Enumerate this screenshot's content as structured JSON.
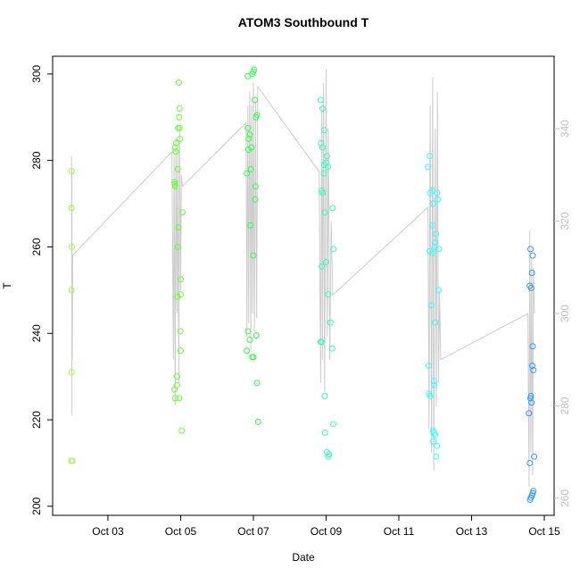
{
  "chart_data": {
    "type": "scatter",
    "title": "ATOM3 Southbound T",
    "x_label": "Date",
    "y_label": "T",
    "xlim": [
      1.48,
      15.27
    ],
    "xticks": [
      {
        "value": 3,
        "label": "Oct 03"
      },
      {
        "value": 5,
        "label": "Oct 05"
      },
      {
        "value": 7,
        "label": "Oct 07"
      },
      {
        "value": 9,
        "label": "Oct 09"
      },
      {
        "value": 11,
        "label": "Oct 11"
      },
      {
        "value": 13,
        "label": "Oct 13"
      },
      {
        "value": 15,
        "label": "Oct 15"
      }
    ],
    "ylim": [
      197.9,
      304.1
    ],
    "yticks": [
      200,
      220,
      240,
      260,
      280,
      300
    ],
    "y2lim": [
      256.3,
      355.7
    ],
    "y2ticks": [
      260,
      280,
      300,
      320,
      340
    ],
    "y2_color": "#c0c0c0",
    "series": [
      {
        "type": "scatter",
        "x": [
          2.0,
          2.0,
          2.01,
          2.0,
          2.0,
          2.0,
          2.02,
          4.95,
          4.97,
          4.96,
          4.93,
          4.97,
          4.98,
          4.88,
          4.85,
          4.86,
          4.87,
          4.92,
          4.83,
          4.84,
          4.85,
          5.05,
          4.94,
          4.92,
          5.0,
          5.0,
          4.91,
          4.99,
          5.0,
          4.9,
          4.83,
          4.9,
          4.85,
          4.96,
          5.03,
          7.02,
          7.0,
          6.97,
          6.85,
          7.04,
          7.1,
          7.07,
          6.85,
          6.9,
          6.87,
          6.95,
          6.86,
          6.93,
          6.82,
          7.06,
          7.05,
          6.92,
          7.0,
          6.85,
          7.08,
          6.9,
          6.82,
          6.97,
          7.0,
          7.1,
          7.13,
          8.85,
          8.9,
          8.95,
          8.86,
          8.9,
          9.02,
          9.0,
          8.95,
          9.05,
          8.94,
          8.88,
          8.9,
          9.18,
          8.96,
          9.2,
          9.0,
          8.88,
          9.05,
          9.12,
          8.85,
          8.88,
          9.17,
          8.96,
          9.2,
          8.97,
          9.02,
          9.08,
          9.06,
          11.85,
          11.8,
          11.92,
          11.86,
          12.05,
          12.07,
          11.95,
          11.93,
          12.02,
          12.0,
          11.98,
          12.1,
          11.85,
          11.92,
          12.09,
          11.9,
          12.0,
          11.82,
          11.97,
          11.98,
          11.83,
          11.86,
          11.94,
          11.97,
          12.0,
          11.95,
          12.05,
          12.03,
          14.62,
          14.68,
          14.66,
          14.6,
          14.64,
          14.68,
          14.67,
          14.7,
          14.63,
          14.62,
          14.65,
          14.58,
          14.72,
          14.6,
          14.7,
          14.68,
          14.66,
          14.63,
          14.61
        ],
        "values": [
          277.5,
          269,
          260,
          250,
          231,
          210.5,
          210.5,
          298,
          292,
          290,
          287.5,
          287.5,
          285,
          284,
          283,
          282,
          282,
          278,
          275,
          274.5,
          274,
          268,
          264.5,
          260,
          252.5,
          249,
          248.5,
          240.5,
          236,
          230,
          227,
          228,
          225,
          225,
          217.5,
          301,
          300.5,
          300,
          299.5,
          294,
          290.5,
          290,
          287.5,
          286,
          285,
          283,
          282.5,
          278,
          277,
          274,
          271,
          265,
          258,
          240.5,
          239.5,
          238.5,
          236,
          234.5,
          234.5,
          228.5,
          219.5,
          294,
          292,
          287,
          284,
          283,
          281,
          279.5,
          279,
          278.5,
          277,
          273,
          272.5,
          269,
          268,
          259.5,
          256.5,
          255.5,
          249,
          242.5,
          238,
          238,
          236.5,
          225.5,
          219,
          217,
          212.5,
          212,
          211.5,
          281,
          278.5,
          273,
          272.5,
          272.5,
          271,
          270,
          265,
          263,
          261,
          260,
          259.5,
          259,
          258.5,
          250,
          246.5,
          242.5,
          232.5,
          229,
          228,
          226,
          225.5,
          217.5,
          217,
          216.5,
          215,
          214,
          211.5,
          259.5,
          258,
          254,
          251,
          250.5,
          237,
          232.5,
          231.5,
          225.5,
          225,
          224,
          221.5,
          211.5,
          210,
          203.5,
          203,
          202.5,
          202,
          201.5
        ],
        "colors": [
          "#99ff33",
          "#99ff33",
          "#99ff33",
          "#99ff33",
          "#99ff33",
          "#99ff33",
          "#99ff33",
          "#66ff33",
          "#66ff33",
          "#66ff33",
          "#66ff33",
          "#66ff33",
          "#66ff33",
          "#66ff33",
          "#66ff33",
          "#66ff33",
          "#66ff33",
          "#66ff33",
          "#66ff33",
          "#66ff33",
          "#66ff33",
          "#66ff33",
          "#66ff33",
          "#66ff33",
          "#66ff33",
          "#66ff33",
          "#66ff33",
          "#66ff33",
          "#66ff33",
          "#66ff33",
          "#66ff33",
          "#66ff33",
          "#66ff33",
          "#66ff33",
          "#66ff33",
          "#33ff44",
          "#33ff44",
          "#33ff44",
          "#33ff44",
          "#33ff44",
          "#33ff44",
          "#33ff44",
          "#33ff44",
          "#33ff44",
          "#33ff44",
          "#33ff44",
          "#33ff44",
          "#33ff44",
          "#33ff44",
          "#33ff44",
          "#33ff44",
          "#33ff44",
          "#33ff44",
          "#33ff44",
          "#33ff44",
          "#33ff44",
          "#33ff44",
          "#33ff44",
          "#33ff44",
          "#33ff44",
          "#33ff44",
          "#33ffbb",
          "#33ffbb",
          "#33ffbb",
          "#33ffbb",
          "#33ffbb",
          "#33ffbb",
          "#33ffbb",
          "#33ffbb",
          "#33ffbb",
          "#33ffbb",
          "#33ffbb",
          "#33ffbb",
          "#33ffbb",
          "#33ffbb",
          "#33ffbb",
          "#33ffbb",
          "#33ffbb",
          "#33ffbb",
          "#33ffbb",
          "#33ffbb",
          "#33ffbb",
          "#33ffbb",
          "#33ffbb",
          "#33ffbb",
          "#33ffbb",
          "#33ffbb",
          "#33ffbb",
          "#33ffbb",
          "#33ffff",
          "#33ffff",
          "#33ffff",
          "#33ffff",
          "#33ffff",
          "#33ffff",
          "#33ffff",
          "#33ffff",
          "#33ffff",
          "#33ffff",
          "#33ffff",
          "#33ffff",
          "#33ffff",
          "#33ffff",
          "#33ffff",
          "#33ffff",
          "#33ffff",
          "#33ffff",
          "#33ffff",
          "#33ffff",
          "#33ffff",
          "#33ffff",
          "#33ffff",
          "#33ffff",
          "#33ffff",
          "#33ffff",
          "#33ffff",
          "#33ffff",
          "#3399ff",
          "#3399ff",
          "#3399ff",
          "#3399ff",
          "#3399ff",
          "#3399ff",
          "#3399ff",
          "#3399ff",
          "#3399ff",
          "#3399ff",
          "#3399ff",
          "#3399ff",
          "#3399ff",
          "#3399ff",
          "#3399ff",
          "#3399ff",
          "#3399ff",
          "#3399ff",
          "#3399ff"
        ]
      },
      {
        "type": "line",
        "axis": "y2",
        "color": "#cccccc",
        "x": [
          2.0,
          2.01,
          2.01,
          2.02,
          2.03,
          4.76,
          4.8,
          4.82,
          4.85,
          4.87,
          4.9,
          4.92,
          4.95,
          4.97,
          5.0,
          5.02,
          5.05,
          6.8,
          6.82,
          6.85,
          6.87,
          6.9,
          6.93,
          6.95,
          6.98,
          7.0,
          7.03,
          7.06,
          7.09,
          7.12,
          8.81,
          8.85,
          8.88,
          8.9,
          8.93,
          8.96,
          9.0,
          9.03,
          9.06,
          9.1,
          9.14,
          9.18,
          11.8,
          11.83,
          11.86,
          11.9,
          11.93,
          11.96,
          12.0,
          12.03,
          12.06,
          12.09,
          12.12,
          12.15,
          14.55,
          14.58,
          14.6,
          14.63,
          14.65,
          14.68,
          14.7,
          14.73
        ],
        "values": [
          334,
          278,
          331,
          290,
          312.6,
          335,
          290,
          334,
          280,
          338,
          300,
          335,
          285,
          340,
          305,
          330,
          327.6,
          341.3,
          295,
          345,
          298,
          348,
          292,
          345,
          300,
          350,
          296,
          346,
          299,
          349.1,
          330.7,
          285,
          345,
          290,
          350,
          283,
          353,
          295,
          340,
          290,
          320,
          304,
          323,
          275,
          345,
          270,
          351,
          266,
          340,
          280,
          348,
          285,
          305,
          290,
          300,
          262.5,
          318,
          270,
          312,
          265,
          310,
          300
        ]
      }
    ]
  }
}
